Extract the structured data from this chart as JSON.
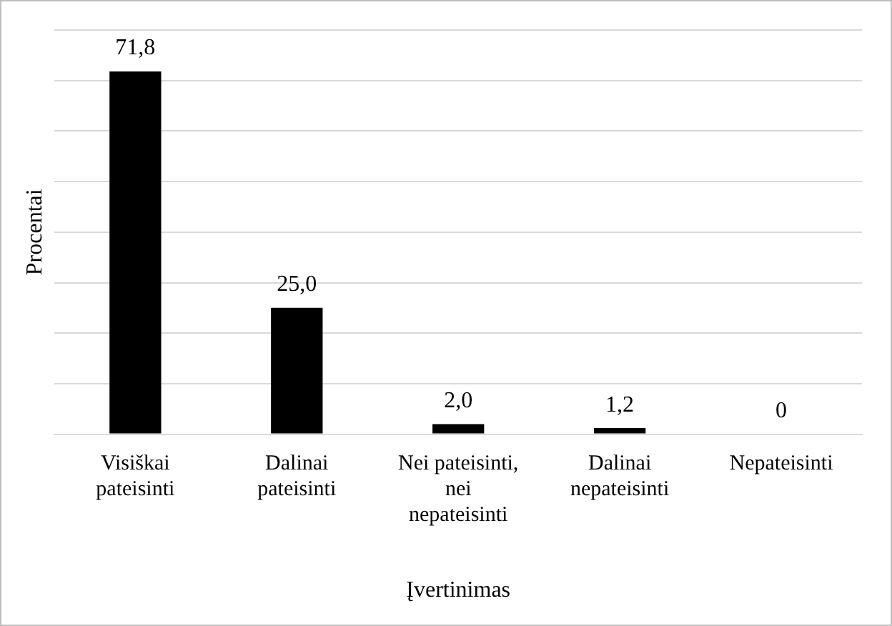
{
  "chart_data": {
    "type": "bar",
    "categories": [
      "Visiškai pateisinti",
      "Dalinai pateisinti",
      "Nei pateisinti, nei nepateisinti",
      "Dalinai nepateisinti",
      "Nepateisinti"
    ],
    "values": [
      71.8,
      25.0,
      2.0,
      1.2,
      0
    ],
    "value_labels": [
      "71,8",
      "25,0",
      "2,0",
      "1,2",
      "0"
    ],
    "color": "#000000",
    "xlabel": "Įvertinimas",
    "ylabel": "Procentai",
    "ylim": [
      0,
      80
    ],
    "yticks": [
      {
        "value": 0,
        "label": null
      },
      {
        "value": 10,
        "label": null
      },
      {
        "value": 20,
        "label": null
      },
      {
        "value": 30,
        "label": null
      },
      {
        "value": 40,
        "label": null
      },
      {
        "value": 50,
        "label": null
      },
      {
        "value": 60,
        "label": null
      },
      {
        "value": 70,
        "label": null
      },
      {
        "value": 80,
        "label": null
      }
    ],
    "tick_labels": "x",
    "grid": "y",
    "legend": false
  }
}
